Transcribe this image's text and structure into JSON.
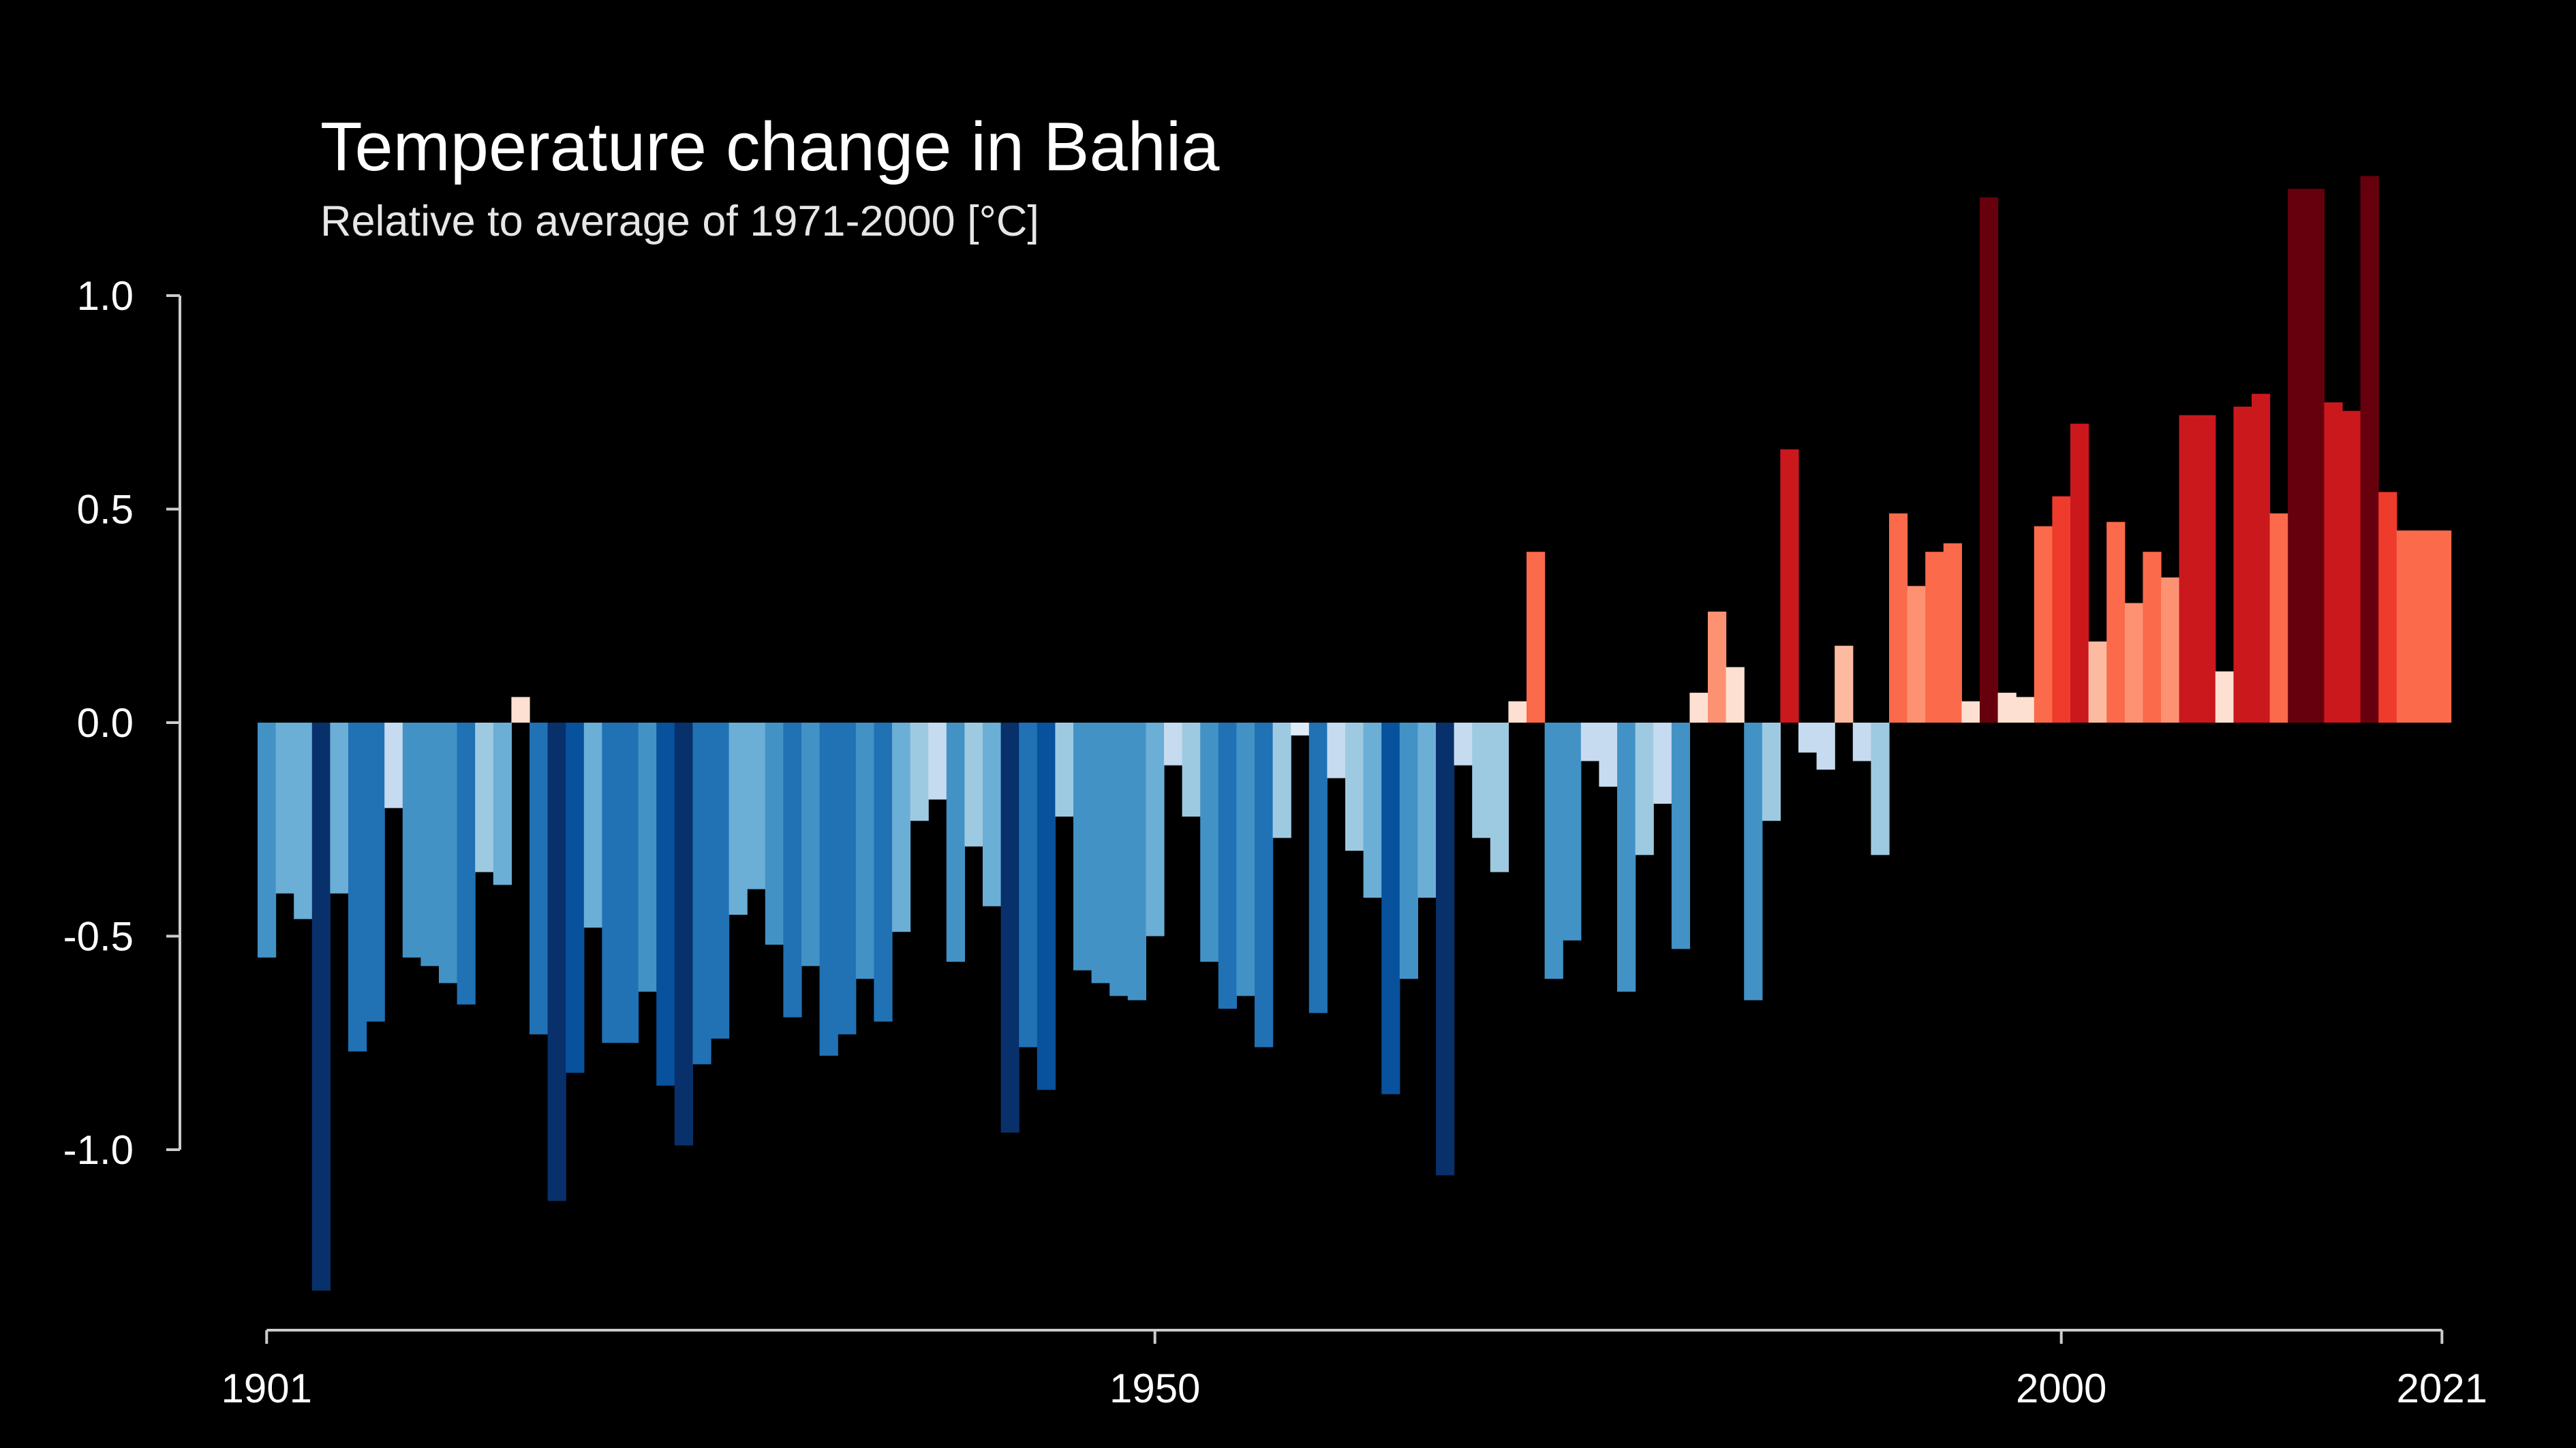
{
  "chart_data": {
    "type": "bar",
    "title": "Temperature change in Bahia",
    "subtitle": "Relative to average of 1971-2000  [°C]",
    "xlabel": "",
    "ylabel": "",
    "x_start_year": 1901,
    "x_end_year": 2021,
    "xlim": [
      1901,
      2021
    ],
    "ylim": [
      -1.42,
      1.28
    ],
    "grid": false,
    "legend": "none",
    "x_ticks": [
      {
        "value": 1901,
        "label": "1901"
      },
      {
        "value": 1950,
        "label": "1950"
      },
      {
        "value": 2000,
        "label": "2000"
      },
      {
        "value": 2021,
        "label": "2021"
      }
    ],
    "y_ticks": [
      {
        "value": 1.0,
        "label": "1.0"
      },
      {
        "value": 0.5,
        "label": "0.5"
      },
      {
        "value": 0.0,
        "label": "0.0"
      },
      {
        "value": -0.5,
        "label": "-0.5"
      },
      {
        "value": -1.0,
        "label": "-1.0"
      }
    ],
    "years": [
      1901,
      1902,
      1903,
      1904,
      1905,
      1906,
      1907,
      1908,
      1909,
      1910,
      1911,
      1912,
      1913,
      1914,
      1915,
      1916,
      1917,
      1918,
      1919,
      1920,
      1921,
      1922,
      1923,
      1924,
      1925,
      1926,
      1927,
      1928,
      1929,
      1930,
      1931,
      1932,
      1933,
      1934,
      1935,
      1936,
      1937,
      1938,
      1939,
      1940,
      1941,
      1942,
      1943,
      1944,
      1945,
      1946,
      1947,
      1948,
      1949,
      1950,
      1951,
      1952,
      1953,
      1954,
      1955,
      1956,
      1957,
      1958,
      1959,
      1960,
      1961,
      1962,
      1963,
      1964,
      1965,
      1966,
      1967,
      1968,
      1969,
      1970,
      1971,
      1972,
      1973,
      1974,
      1975,
      1976,
      1977,
      1978,
      1979,
      1980,
      1981,
      1982,
      1983,
      1984,
      1985,
      1986,
      1987,
      1988,
      1989,
      1990,
      1991,
      1992,
      1993,
      1994,
      1995,
      1996,
      1997,
      1998,
      1999,
      2000,
      2001,
      2002,
      2003,
      2004,
      2005,
      2006,
      2007,
      2008,
      2009,
      2010,
      2011,
      2012,
      2013,
      2014,
      2015,
      2016,
      2017,
      2018,
      2019,
      2020,
      2021
    ],
    "values": [
      -0.55,
      -0.4,
      -0.46,
      -1.33,
      -0.4,
      -0.77,
      -0.7,
      -0.2,
      -0.55,
      -0.57,
      -0.61,
      -0.66,
      -0.35,
      -0.38,
      0.06,
      -0.73,
      -1.12,
      -0.82,
      -0.48,
      -0.75,
      -0.75,
      -0.63,
      -0.85,
      -0.99,
      -0.8,
      -0.74,
      -0.45,
      -0.39,
      -0.52,
      -0.69,
      -0.57,
      -0.78,
      -0.73,
      -0.6,
      -0.7,
      -0.49,
      -0.23,
      -0.18,
      -0.56,
      -0.29,
      -0.43,
      -0.96,
      -0.76,
      -0.86,
      -0.22,
      -0.58,
      -0.61,
      -0.64,
      -0.65,
      -0.5,
      -0.1,
      -0.22,
      -0.56,
      -0.67,
      -0.64,
      -0.76,
      -0.27,
      -0.03,
      -0.68,
      -0.13,
      -0.3,
      -0.41,
      -0.87,
      -0.6,
      -0.41,
      -1.06,
      -0.1,
      -0.27,
      -0.35,
      0.05,
      0.4,
      -0.6,
      -0.51,
      -0.09,
      -0.15,
      -0.63,
      -0.31,
      -0.19,
      -0.53,
      0.07,
      0.26,
      0.13,
      -0.65,
      -0.23,
      0.64,
      -0.07,
      -0.11,
      0.18,
      -0.09,
      -0.31,
      0.49,
      0.32,
      0.4,
      0.42,
      0.05,
      1.23,
      0.07,
      0.06,
      0.46,
      0.53,
      0.7,
      0.19,
      0.47,
      0.28,
      0.4,
      0.34,
      0.72,
      0.72,
      0.12,
      0.74,
      0.77,
      0.49,
      1.25,
      1.25,
      0.75,
      0.73,
      1.28,
      0.54,
      0.45,
      0.45,
      0.45
    ],
    "colors": {
      "background": "#000000",
      "axis": "#cccccc",
      "text": "#ffffff",
      "subtitle": "#e6e6e6"
    }
  }
}
